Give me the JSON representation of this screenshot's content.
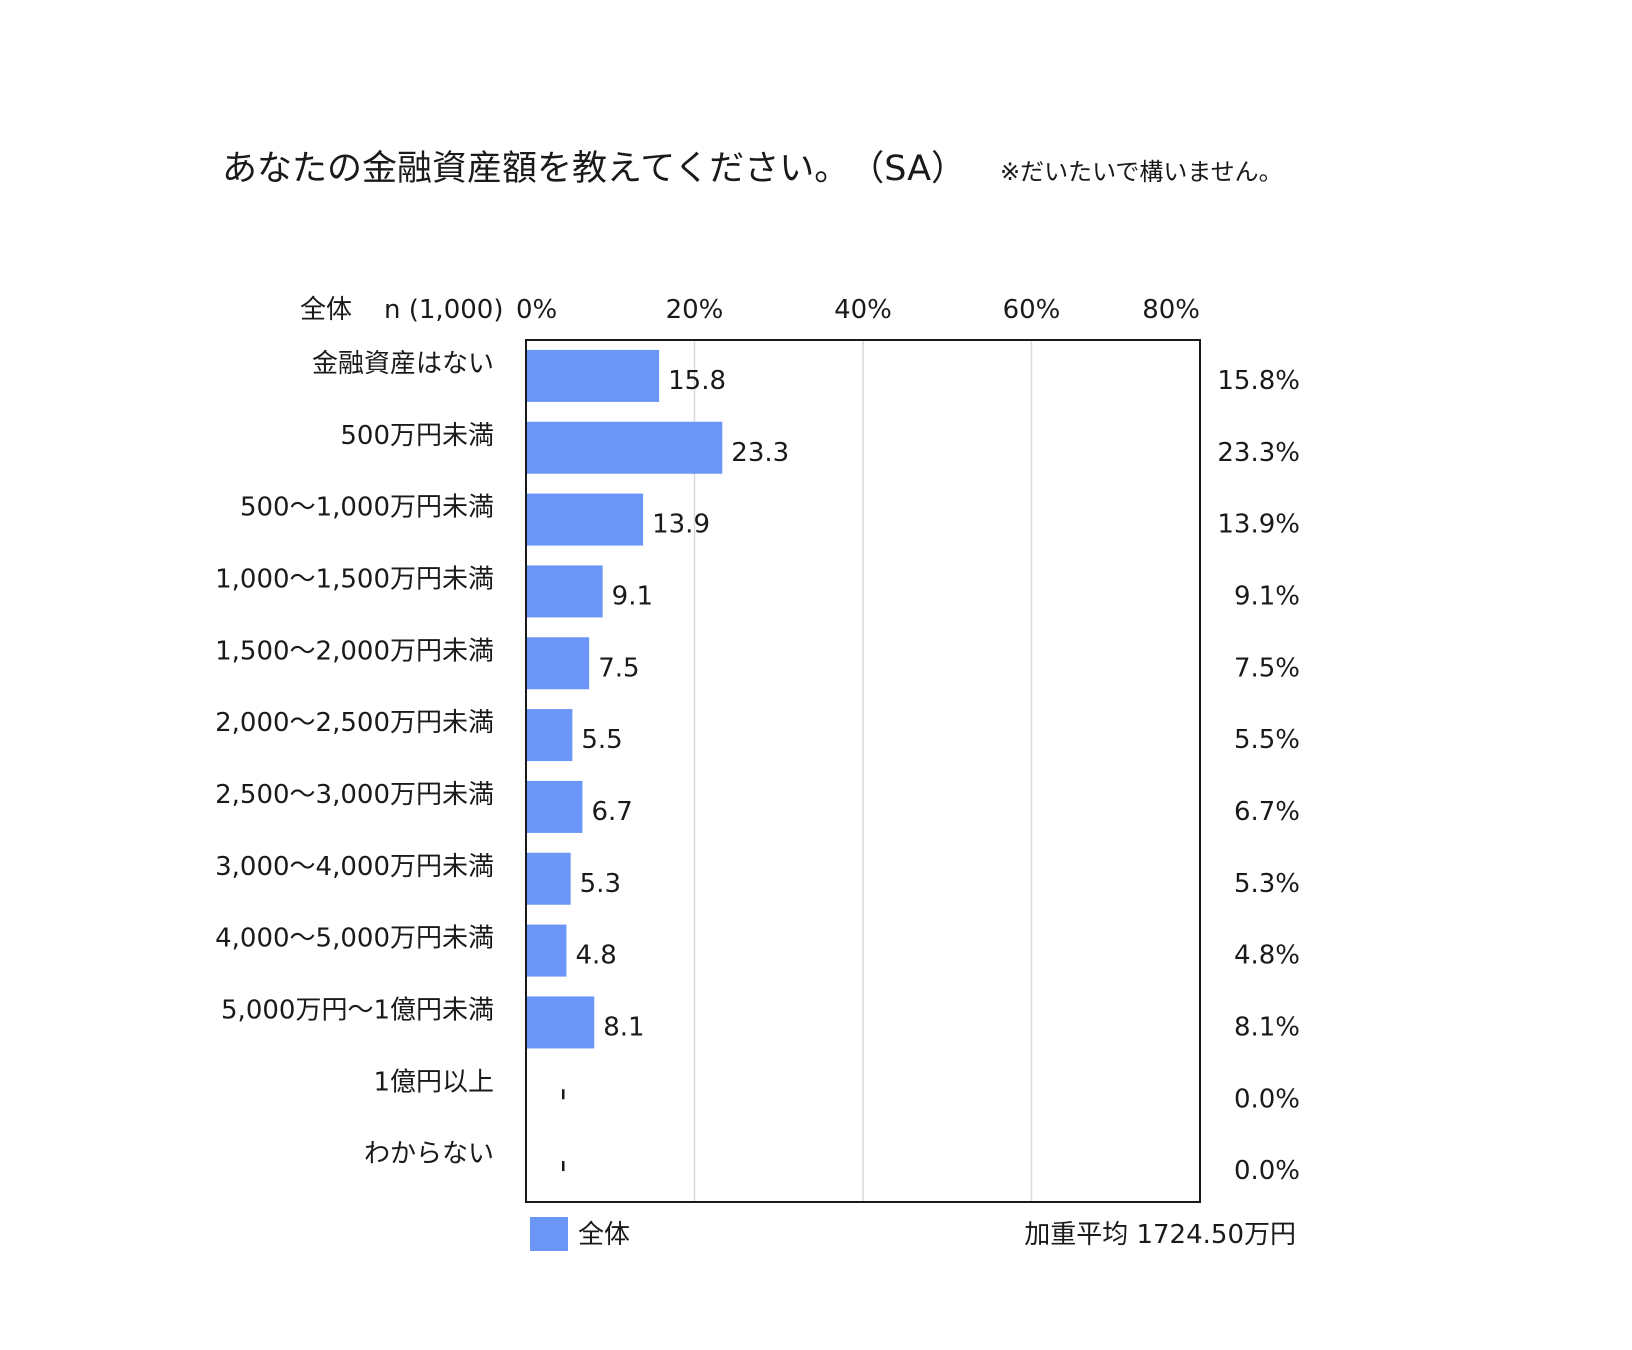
{
  "chart_data": {
    "type": "bar",
    "orientation": "horizontal",
    "title": "あなたの金融資産額を教えてください。",
    "title_suffix": "（SA）",
    "note": "※だいたいで構いません。",
    "header_label": "全体",
    "n_label": "n (1,000)",
    "xlim": [
      0,
      80
    ],
    "x_ticks": [
      "0%",
      "20%",
      "40%",
      "60%",
      "80%"
    ],
    "grid": true,
    "legend_position": "bottom-left",
    "categories": [
      "金融資産はない",
      "500万円未満",
      "500～1,000万円未満",
      "1,000～1,500万円未満",
      "1,500～2,000万円未満",
      "2,000～2,500万円未満",
      "2,500～3,000万円未満",
      "3,000～4,000万円未満",
      "4,000～5,000万円未満",
      "5,000万円～1億円未満",
      "1億円以上",
      "わからない"
    ],
    "series": [
      {
        "name": "全体",
        "color": "#6b96f8",
        "values": [
          15.8,
          23.3,
          13.9,
          9.1,
          7.5,
          5.5,
          6.7,
          5.3,
          4.8,
          8.1,
          0.0,
          0.0
        ],
        "value_labels": [
          "15.8",
          "23.3",
          "13.9",
          "9.1",
          "7.5",
          "5.5",
          "6.7",
          "5.3",
          "4.8",
          "8.1",
          "",
          ""
        ],
        "percent_labels": [
          "15.8%",
          "23.3%",
          "13.9%",
          "9.1%",
          "7.5%",
          "5.5%",
          "6.7%",
          "5.3%",
          "4.8%",
          "8.1%",
          "0.0%",
          "0.0%"
        ]
      }
    ],
    "weighted_average_label": "加重平均 1724.50万円"
  }
}
